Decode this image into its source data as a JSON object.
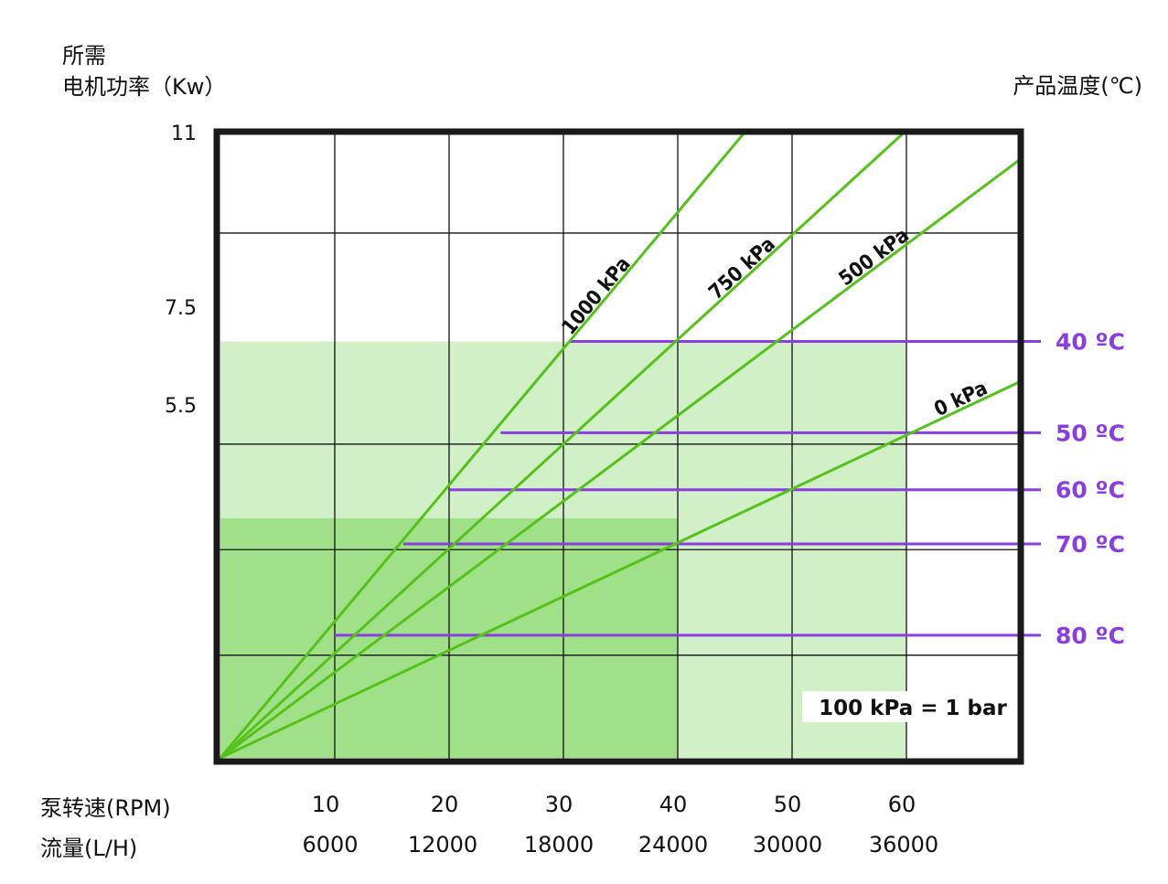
{
  "left_label": {
    "line1": "所需",
    "line2": "电机功率（Kw）"
  },
  "right_label": "产品温度(℃)",
  "x_rows": {
    "rpm_label": "泵转速(RPM)",
    "flow_label": "流量(L/H)"
  },
  "note": "100 kPa = 1 bar",
  "colors": {
    "line": "#55c21b",
    "temp": "#8a3de0",
    "light_zone": "#d2f0c8",
    "dark_zone": "#a0e088",
    "frame": "#1a1a1a"
  },
  "chart_data": {
    "type": "line",
    "title": "",
    "ylabel": "所需 电机功率（Kw）",
    "xlabel": "泵转速(RPM) / 流量(L/H)",
    "xlim": [
      0,
      70
    ],
    "ylim": [
      0,
      11
    ],
    "y_ticks": [
      "11",
      "7.5",
      "5.5"
    ],
    "y_tick_values": [
      11,
      7.5,
      5.5
    ],
    "x_ticks_rpm": [
      "10",
      "20",
      "30",
      "40",
      "50",
      "60"
    ],
    "x_ticks_flow": [
      "6000",
      "12000",
      "18000",
      "24000",
      "30000",
      "36000"
    ],
    "x_tick_values": [
      10,
      20,
      30,
      40,
      50,
      60
    ],
    "series": [
      {
        "name": "1000 kPa",
        "x": [
          0,
          46
        ],
        "y": [
          0,
          11
        ]
      },
      {
        "name": "750 kPa",
        "x": [
          0,
          60
        ],
        "y": [
          0,
          11
        ]
      },
      {
        "name": "500 kPa",
        "x": [
          0,
          70
        ],
        "y": [
          0,
          10.5
        ]
      },
      {
        "name": "0 kPa",
        "x": [
          0,
          70
        ],
        "y": [
          0,
          6.6
        ]
      }
    ],
    "temperature_lines": [
      {
        "label": "40 ºC",
        "x_start": 30.6,
        "y": 7.3
      },
      {
        "label": "50 ºC",
        "x_start": 24.5,
        "y": 5.7
      },
      {
        "label": "60 ºC",
        "x_start": 20,
        "y": 4.7
      },
      {
        "label": "70 ºC",
        "x_start": 16,
        "y": 3.75
      },
      {
        "label": "80 ºC",
        "x_start": 10,
        "y": 2.15
      }
    ],
    "zones": [
      {
        "name": "light",
        "x": [
          0,
          60
        ],
        "y": [
          0,
          7.3
        ]
      },
      {
        "name": "dark",
        "x": [
          0,
          40
        ],
        "y": [
          0,
          4.2
        ]
      }
    ],
    "grid": true
  }
}
